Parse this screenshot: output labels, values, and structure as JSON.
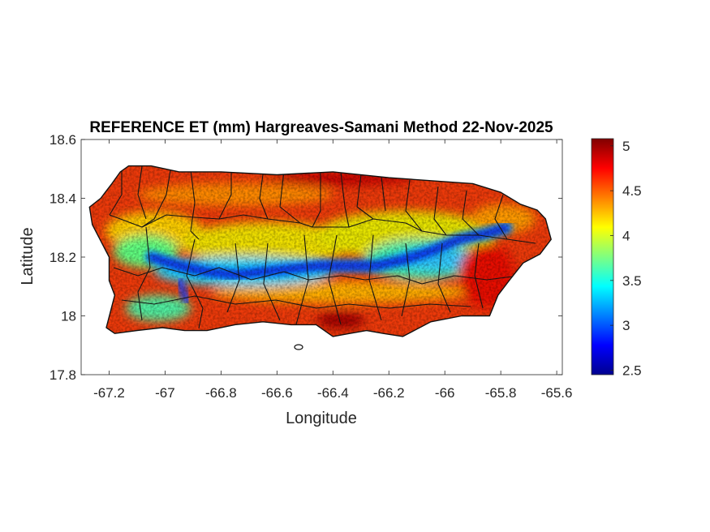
{
  "title": "REFERENCE ET (mm) Hargreaves-Samani Method  22-Nov-2025",
  "xlabel": "Longitude",
  "ylabel": "Latitude",
  "chart_data": {
    "type": "heatmap",
    "title": "REFERENCE ET (mm) Hargreaves-Samani Method  22-Nov-2025",
    "xlabel": "Longitude",
    "ylabel": "Latitude",
    "xlim": [
      -67.3,
      -65.58
    ],
    "ylim": [
      17.8,
      18.6
    ],
    "xticks": [
      -67.2,
      -67,
      -66.8,
      -66.6,
      -66.4,
      -66.2,
      -66,
      -65.8,
      -65.6
    ],
    "xtick_labels": [
      "-67.2",
      "-67",
      "-66.8",
      "-66.6",
      "-66.4",
      "-66.2",
      "-66",
      "-65.8",
      "-65.6"
    ],
    "yticks": [
      17.8,
      18,
      18.2,
      18.4,
      18.6
    ],
    "ytick_labels": [
      "17.8",
      "18",
      "18.2",
      "18.4",
      "18.6"
    ],
    "colorbar": {
      "colormap": "jet",
      "clim": [
        2.45,
        5.08
      ],
      "ticks": [
        2.5,
        3,
        3.5,
        4,
        4.5,
        5
      ],
      "tick_labels": [
        "2.5",
        "3",
        "3.5",
        "4",
        "4.5",
        "5"
      ]
    },
    "coastline_lonlat": [
      [
        -67.27,
        18.37
      ],
      [
        -67.23,
        18.4
      ],
      [
        -67.19,
        18.45
      ],
      [
        -67.16,
        18.49
      ],
      [
        -67.13,
        18.51
      ],
      [
        -67.05,
        18.51
      ],
      [
        -66.95,
        18.49
      ],
      [
        -66.8,
        18.49
      ],
      [
        -66.6,
        18.48
      ],
      [
        -66.4,
        18.49
      ],
      [
        -66.2,
        18.47
      ],
      [
        -66.05,
        18.46
      ],
      [
        -65.9,
        18.45
      ],
      [
        -65.8,
        18.42
      ],
      [
        -65.73,
        18.38
      ],
      [
        -65.67,
        18.36
      ],
      [
        -65.64,
        18.33
      ],
      [
        -65.62,
        18.26
      ],
      [
        -65.66,
        18.21
      ],
      [
        -65.72,
        18.18
      ],
      [
        -65.77,
        18.12
      ],
      [
        -65.81,
        18.07
      ],
      [
        -65.84,
        18.0
      ],
      [
        -65.94,
        18.0
      ],
      [
        -66.05,
        17.98
      ],
      [
        -66.15,
        17.93
      ],
      [
        -66.22,
        17.94
      ],
      [
        -66.28,
        17.95
      ],
      [
        -66.34,
        17.94
      ],
      [
        -66.4,
        17.93
      ],
      [
        -66.46,
        17.97
      ],
      [
        -66.55,
        17.97
      ],
      [
        -66.65,
        17.98
      ],
      [
        -66.75,
        17.97
      ],
      [
        -66.85,
        17.95
      ],
      [
        -66.93,
        17.95
      ],
      [
        -67.01,
        17.96
      ],
      [
        -67.1,
        17.95
      ],
      [
        -67.18,
        17.94
      ],
      [
        -67.21,
        17.96
      ],
      [
        -67.18,
        18.07
      ],
      [
        -67.2,
        18.12
      ],
      [
        -67.2,
        18.2
      ],
      [
        -67.26,
        18.31
      ],
      [
        -67.27,
        18.37
      ]
    ],
    "low_et_ridge_lonlat": [
      [
        -67.05,
        18.2
      ],
      [
        -66.95,
        18.17
      ],
      [
        -66.85,
        18.15
      ],
      [
        -66.75,
        18.14
      ],
      [
        -66.65,
        18.15
      ],
      [
        -66.55,
        18.16
      ],
      [
        -66.45,
        18.17
      ],
      [
        -66.35,
        18.17
      ],
      [
        -66.25,
        18.17
      ],
      [
        -66.15,
        18.19
      ],
      [
        -66.05,
        18.22
      ],
      [
        -65.95,
        18.26
      ],
      [
        -65.85,
        18.28
      ],
      [
        -65.78,
        18.3
      ]
    ],
    "low_et_spur_lonlat": [
      [
        -66.95,
        18.12
      ],
      [
        -66.93,
        18.07
      ],
      [
        -66.92,
        18.05
      ]
    ],
    "islet_lonlat": [
      [
        -66.53,
        17.89
      ]
    ]
  }
}
